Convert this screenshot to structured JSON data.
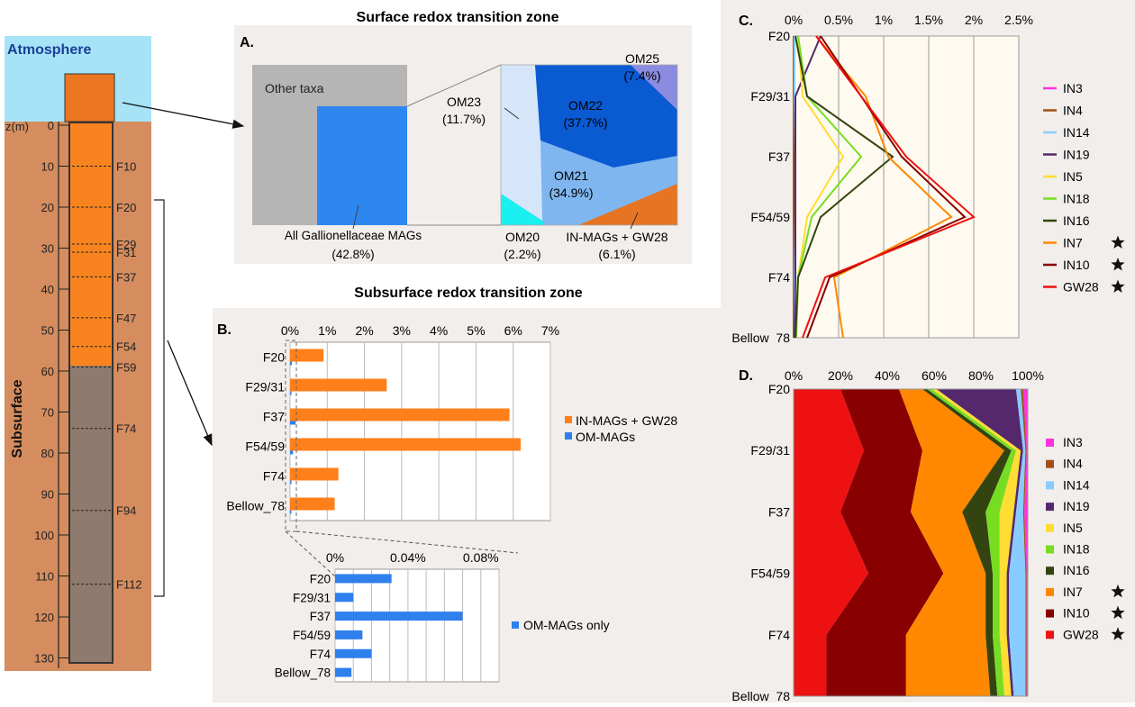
{
  "column": {
    "atmosphere_label": "Atmosphere",
    "subsurface_label": "Subsurface",
    "depth_axis_label": "z(m)",
    "depth_ticks": [
      "0",
      "10",
      "20",
      "30",
      "40",
      "50",
      "60",
      "70",
      "80",
      "90",
      "100",
      "110",
      "120",
      "130"
    ],
    "wells": [
      "F10",
      "F20",
      "F29",
      "F31",
      "F37",
      "F47",
      "F54",
      "F59",
      "F74",
      "F94",
      "F112"
    ]
  },
  "section_titles": {
    "surface": "Surface redox transition zone",
    "subsurface": "Subsurface redox transition zone"
  },
  "panel_a": {
    "label": "A.",
    "other_taxa": "Other taxa",
    "all_gallionellaceae": "All Gallionellaceae MAGs",
    "all_gallionellaceae_pct": "(42.8%)",
    "slices": [
      {
        "name": "OM25",
        "pct_label": "(7.4%)",
        "value": 7.4
      },
      {
        "name": "OM22",
        "pct_label": "(37.7%)",
        "value": 37.7
      },
      {
        "name": "OM23",
        "pct_label": "(11.7%)",
        "value": 11.7
      },
      {
        "name": "OM21",
        "pct_label": "(34.9%)",
        "value": 34.9
      },
      {
        "name": "OM20",
        "pct_label": "(2.2%)",
        "value": 2.2
      },
      {
        "name": "IN-MAGs + GW28",
        "pct_label": "(6.1%)",
        "value": 6.1
      }
    ]
  },
  "panel_b": {
    "label": "B.",
    "x_ticks": [
      "0%",
      "1%",
      "2%",
      "3%",
      "4%",
      "5%",
      "6%",
      "7%"
    ],
    "legend": [
      "IN-MAGs + GW28",
      "OM-MAGs"
    ],
    "inset_x_ticks": [
      "0%",
      "0.04%",
      "0.08%"
    ],
    "inset_legend": "OM-MAGs only"
  },
  "panel_c": {
    "label": "C.",
    "x_ticks": [
      "0%",
      "0.5%",
      "1%",
      "1.5%",
      "2%",
      "2.5%"
    ]
  },
  "panel_d": {
    "label": "D.",
    "x_ticks": [
      "0%",
      "20%",
      "40%",
      "60%",
      "80%",
      "100%"
    ]
  },
  "legend_cd": [
    {
      "name": "IN3",
      "color": "#ff33dd",
      "star": false
    },
    {
      "name": "IN4",
      "color": "#a0521a",
      "star": false
    },
    {
      "name": "IN14",
      "color": "#88ccff",
      "star": false
    },
    {
      "name": "IN19",
      "color": "#55286e",
      "star": false
    },
    {
      "name": "IN5",
      "color": "#ffdd33",
      "star": false
    },
    {
      "name": "IN18",
      "color": "#77dd22",
      "star": false
    },
    {
      "name": "IN16",
      "color": "#334411",
      "star": false
    },
    {
      "name": "IN7",
      "color": "#ff8800",
      "star": true
    },
    {
      "name": "IN10",
      "color": "#880000",
      "star": true
    },
    {
      "name": "GW28",
      "color": "#ee1111",
      "star": true
    }
  ],
  "chart_data": [
    {
      "type": "pie",
      "title": "Surface redox transition zone",
      "slices": [
        "All Gallionellaceae MAGs",
        "Other taxa"
      ],
      "values": [
        42.8,
        57.2
      ],
      "breakdown": {
        "categories": [
          "OM25",
          "OM22",
          "OM23",
          "OM21",
          "OM20",
          "IN-MAGs + GW28"
        ],
        "values": [
          7.4,
          37.7,
          11.7,
          34.9,
          2.2,
          6.1
        ]
      }
    },
    {
      "type": "bar",
      "title": "Subsurface redox transition zone",
      "categories": [
        "F20",
        "F29/31",
        "F37",
        "F54/59",
        "F74",
        "Bellow_78"
      ],
      "series": [
        {
          "name": "IN-MAGs + GW28",
          "values": [
            0.9,
            2.6,
            5.9,
            6.2,
            1.3,
            1.2
          ],
          "color": "#ff7f1a"
        },
        {
          "name": "OM-MAGs",
          "values": [
            0.05,
            0.01,
            0.15,
            0.08,
            0.02,
            0.02
          ],
          "color": "#2f80ed"
        }
      ],
      "xlim": [
        0,
        7
      ]
    },
    {
      "type": "bar",
      "categories": [
        "F20",
        "F29/31",
        "F37",
        "F54/59",
        "F74",
        "Bellow_78"
      ],
      "series": [
        {
          "name": "OM-MAGs only",
          "values": [
            0.031,
            0.01,
            0.07,
            0.015,
            0.02,
            0.009
          ],
          "color": "#2f80ed"
        }
      ],
      "xlim": [
        0,
        0.09
      ]
    },
    {
      "type": "line",
      "categories": [
        "F20",
        "F29/31",
        "F37",
        "F54/59",
        "F74",
        "Bellow_78"
      ],
      "xlim": [
        0,
        2.5
      ],
      "series": [
        {
          "name": "IN3",
          "values": [
            0.0,
            0.0,
            0.0,
            0.0,
            0.0,
            0.0
          ]
        },
        {
          "name": "IN4",
          "values": [
            0.0,
            0.0,
            0.0,
            0.0,
            0.0,
            0.0
          ]
        },
        {
          "name": "IN14",
          "values": [
            0.01,
            0.01,
            0.02,
            0.02,
            0.01,
            0.01
          ]
        },
        {
          "name": "IN19",
          "values": [
            0.3,
            0.02,
            0.02,
            0.02,
            0.02,
            0.01
          ]
        },
        {
          "name": "IN5",
          "values": [
            0.05,
            0.1,
            0.55,
            0.15,
            0.05,
            0.03
          ]
        },
        {
          "name": "IN18",
          "values": [
            0.05,
            0.15,
            0.75,
            0.2,
            0.05,
            0.03
          ]
        },
        {
          "name": "IN16",
          "values": [
            0.02,
            0.15,
            1.1,
            0.3,
            0.05,
            0.02
          ]
        },
        {
          "name": "IN7",
          "values": [
            0.25,
            0.8,
            1.05,
            1.75,
            0.45,
            0.55
          ]
        },
        {
          "name": "IN10",
          "values": [
            0.3,
            0.75,
            1.2,
            1.9,
            0.4,
            0.15
          ]
        },
        {
          "name": "GW28",
          "values": [
            0.25,
            0.75,
            1.25,
            2.0,
            0.35,
            0.1
          ]
        }
      ]
    },
    {
      "type": "area",
      "categories": [
        "F20",
        "F29/31",
        "F37",
        "F54/59",
        "F74",
        "Bellow_78"
      ],
      "xlim": [
        0,
        100
      ],
      "series": [
        {
          "name": "GW28",
          "values": [
            20,
            30,
            20,
            32,
            14,
            14
          ]
        },
        {
          "name": "IN10",
          "values": [
            25,
            25,
            30,
            32,
            34,
            34
          ]
        },
        {
          "name": "IN7",
          "values": [
            10,
            35,
            22,
            18,
            34,
            36
          ]
        },
        {
          "name": "IN16",
          "values": [
            2,
            3,
            10,
            3,
            3,
            3
          ]
        },
        {
          "name": "IN18",
          "values": [
            2,
            2,
            6,
            3,
            3,
            3
          ]
        },
        {
          "name": "IN5",
          "values": [
            2,
            2,
            6,
            3,
            3,
            3
          ]
        },
        {
          "name": "IN19",
          "values": [
            34,
            1,
            1,
            1,
            1,
            1
          ]
        },
        {
          "name": "IN14",
          "values": [
            2,
            1,
            3,
            7,
            7,
            5
          ]
        },
        {
          "name": "IN4",
          "values": [
            1,
            0.5,
            0.5,
            0.5,
            0.5,
            0.5
          ]
        },
        {
          "name": "IN3",
          "values": [
            2,
            0.5,
            1.5,
            1.5,
            1.5,
            1.5
          ]
        }
      ]
    }
  ]
}
